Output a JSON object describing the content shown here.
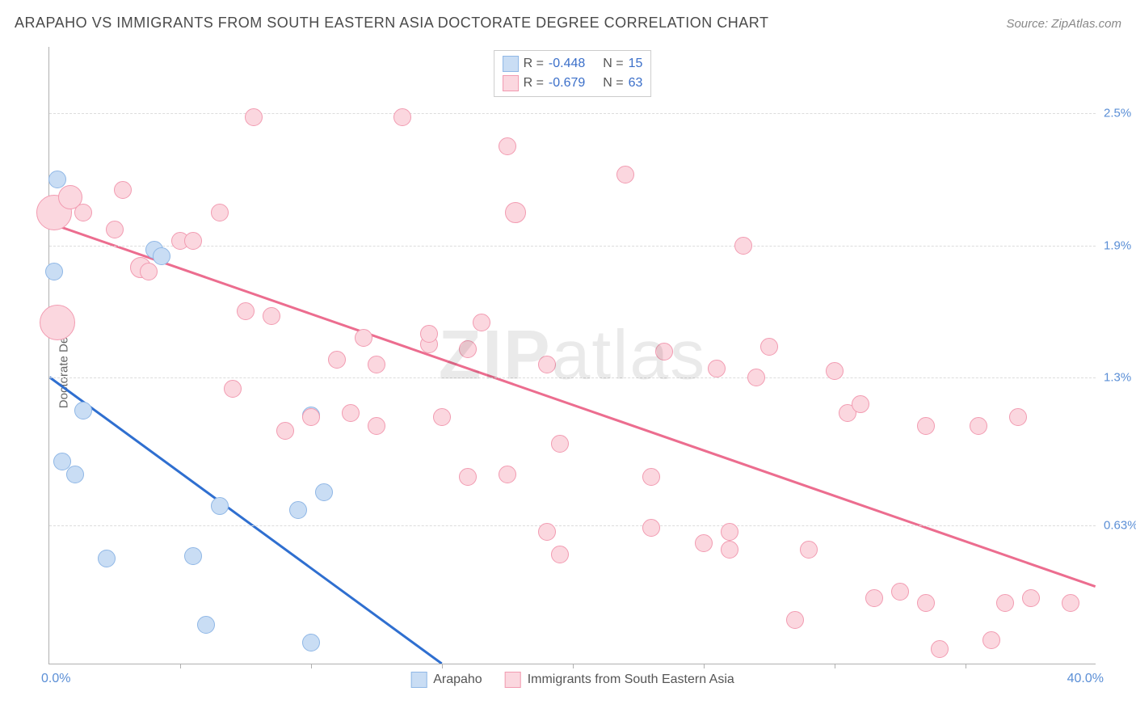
{
  "header": {
    "title": "ARAPAHO VS IMMIGRANTS FROM SOUTH EASTERN ASIA DOCTORATE DEGREE CORRELATION CHART",
    "source": "Source: ZipAtlas.com"
  },
  "watermark": "ZIPatlas",
  "chart": {
    "type": "scatter",
    "y_axis_label": "Doctorate Degree",
    "xlim": [
      0,
      40
    ],
    "ylim": [
      0,
      2.8
    ],
    "x_min_label": "0.0%",
    "x_max_label": "40.0%",
    "y_ticks": [
      {
        "v": 2.5,
        "label": "2.5%"
      },
      {
        "v": 1.9,
        "label": "1.9%"
      },
      {
        "v": 1.3,
        "label": "1.3%"
      },
      {
        "v": 0.63,
        "label": "0.63%"
      }
    ],
    "x_tick_positions": [
      5,
      10,
      15,
      20,
      25,
      30,
      35
    ],
    "background_color": "#ffffff",
    "grid_color": "#dcdcdc",
    "axis_color": "#b0b0b0",
    "tick_label_color": "#5b8fd6",
    "series": [
      {
        "key": "arapaho",
        "label": "Arapaho",
        "fill": "#c9ddf4",
        "stroke": "#8fb7e6",
        "line_color": "#2f6fd0",
        "line_width": 3,
        "r_stat": "-0.448",
        "n_stat": "15",
        "trend": {
          "x1": 0,
          "y1": 1.3,
          "x2": 15,
          "y2": 0
        },
        "points": [
          {
            "x": 0.3,
            "y": 2.2,
            "r": 11
          },
          {
            "x": 0.2,
            "y": 1.78,
            "r": 11
          },
          {
            "x": 4.0,
            "y": 1.88,
            "r": 11
          },
          {
            "x": 4.3,
            "y": 1.85,
            "r": 11
          },
          {
            "x": 1.3,
            "y": 1.15,
            "r": 11
          },
          {
            "x": 0.5,
            "y": 0.92,
            "r": 11
          },
          {
            "x": 1.0,
            "y": 0.86,
            "r": 11
          },
          {
            "x": 10.0,
            "y": 1.13,
            "r": 11
          },
          {
            "x": 2.2,
            "y": 0.48,
            "r": 11
          },
          {
            "x": 5.5,
            "y": 0.49,
            "r": 11
          },
          {
            "x": 6.5,
            "y": 0.72,
            "r": 11
          },
          {
            "x": 9.5,
            "y": 0.7,
            "r": 11
          },
          {
            "x": 10.5,
            "y": 0.78,
            "r": 11
          },
          {
            "x": 6.0,
            "y": 0.18,
            "r": 11
          },
          {
            "x": 10.0,
            "y": 0.1,
            "r": 11
          }
        ]
      },
      {
        "key": "immigrants",
        "label": "Immigrants from South Eastern Asia",
        "fill": "#fbd7df",
        "stroke": "#f29bb1",
        "line_color": "#ec6d8f",
        "line_width": 3,
        "r_stat": "-0.679",
        "n_stat": "63",
        "trend": {
          "x1": 0,
          "y1": 2.0,
          "x2": 40,
          "y2": 0.35
        },
        "points": [
          {
            "x": 0.2,
            "y": 2.05,
            "r": 22
          },
          {
            "x": 0.3,
            "y": 1.55,
            "r": 22
          },
          {
            "x": 0.8,
            "y": 2.12,
            "r": 15
          },
          {
            "x": 1.3,
            "y": 2.05,
            "r": 11
          },
          {
            "x": 2.8,
            "y": 2.15,
            "r": 11
          },
          {
            "x": 2.5,
            "y": 1.97,
            "r": 11
          },
          {
            "x": 3.5,
            "y": 1.8,
            "r": 13
          },
          {
            "x": 5.0,
            "y": 1.92,
            "r": 11
          },
          {
            "x": 5.5,
            "y": 1.92,
            "r": 11
          },
          {
            "x": 6.5,
            "y": 2.05,
            "r": 11
          },
          {
            "x": 3.8,
            "y": 1.78,
            "r": 11
          },
          {
            "x": 7.8,
            "y": 2.48,
            "r": 11
          },
          {
            "x": 13.5,
            "y": 2.48,
            "r": 11
          },
          {
            "x": 11.0,
            "y": 1.38,
            "r": 11
          },
          {
            "x": 12.5,
            "y": 1.36,
            "r": 11
          },
          {
            "x": 8.5,
            "y": 1.58,
            "r": 11
          },
          {
            "x": 7.5,
            "y": 1.6,
            "r": 11
          },
          {
            "x": 7.0,
            "y": 1.25,
            "r": 11
          },
          {
            "x": 10.0,
            "y": 1.12,
            "r": 11
          },
          {
            "x": 9.0,
            "y": 1.06,
            "r": 11
          },
          {
            "x": 11.5,
            "y": 1.14,
            "r": 11
          },
          {
            "x": 12.5,
            "y": 1.08,
            "r": 11
          },
          {
            "x": 12.0,
            "y": 1.48,
            "r": 11
          },
          {
            "x": 14.5,
            "y": 1.45,
            "r": 11
          },
          {
            "x": 14.5,
            "y": 1.5,
            "r": 11
          },
          {
            "x": 15.0,
            "y": 1.12,
            "r": 11
          },
          {
            "x": 16.0,
            "y": 1.43,
            "r": 11
          },
          {
            "x": 16.5,
            "y": 1.55,
            "r": 11
          },
          {
            "x": 17.5,
            "y": 2.35,
            "r": 11
          },
          {
            "x": 17.8,
            "y": 2.05,
            "r": 13
          },
          {
            "x": 19.0,
            "y": 1.36,
            "r": 11
          },
          {
            "x": 17.5,
            "y": 0.86,
            "r": 11
          },
          {
            "x": 16.0,
            "y": 0.85,
            "r": 11
          },
          {
            "x": 19.5,
            "y": 1.0,
            "r": 11
          },
          {
            "x": 19.0,
            "y": 0.6,
            "r": 11
          },
          {
            "x": 19.5,
            "y": 0.5,
            "r": 11
          },
          {
            "x": 22.0,
            "y": 2.22,
            "r": 11
          },
          {
            "x": 23.0,
            "y": 0.85,
            "r": 11
          },
          {
            "x": 23.0,
            "y": 0.62,
            "r": 11
          },
          {
            "x": 23.5,
            "y": 1.42,
            "r": 11
          },
          {
            "x": 25.0,
            "y": 0.55,
            "r": 11
          },
          {
            "x": 25.5,
            "y": 1.34,
            "r": 11
          },
          {
            "x": 26.0,
            "y": 0.52,
            "r": 11
          },
          {
            "x": 26.0,
            "y": 0.6,
            "r": 11
          },
          {
            "x": 26.5,
            "y": 1.9,
            "r": 11
          },
          {
            "x": 27.5,
            "y": 1.44,
            "r": 11
          },
          {
            "x": 27.0,
            "y": 1.3,
            "r": 11
          },
          {
            "x": 28.5,
            "y": 0.2,
            "r": 11
          },
          {
            "x": 29.0,
            "y": 0.52,
            "r": 11
          },
          {
            "x": 30.0,
            "y": 1.33,
            "r": 11
          },
          {
            "x": 30.5,
            "y": 1.14,
            "r": 11
          },
          {
            "x": 31.0,
            "y": 1.18,
            "r": 11
          },
          {
            "x": 31.5,
            "y": 0.3,
            "r": 11
          },
          {
            "x": 32.5,
            "y": 0.33,
            "r": 11
          },
          {
            "x": 33.5,
            "y": 0.28,
            "r": 11
          },
          {
            "x": 33.5,
            "y": 1.08,
            "r": 11
          },
          {
            "x": 34.0,
            "y": 0.07,
            "r": 11
          },
          {
            "x": 35.5,
            "y": 1.08,
            "r": 11
          },
          {
            "x": 36.0,
            "y": 0.11,
            "r": 11
          },
          {
            "x": 36.5,
            "y": 0.28,
            "r": 11
          },
          {
            "x": 37.0,
            "y": 1.12,
            "r": 11
          },
          {
            "x": 37.5,
            "y": 0.3,
            "r": 11
          },
          {
            "x": 39.0,
            "y": 0.28,
            "r": 11
          }
        ]
      }
    ]
  },
  "legend_labels": {
    "r_prefix": "R = ",
    "n_prefix": "N = "
  }
}
